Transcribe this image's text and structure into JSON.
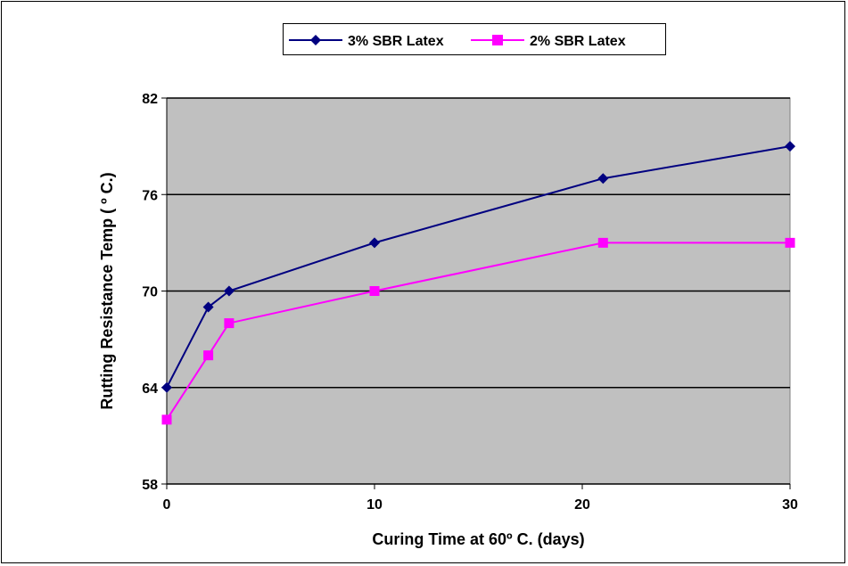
{
  "chart_data": {
    "type": "line",
    "title": "",
    "xlabel": "Curing Time at 60º C. (days)",
    "ylabel": "Rutting Resistance Temp ( º C.)",
    "x_ticks": [
      0,
      10,
      20,
      30
    ],
    "y_ticks": [
      58,
      64,
      70,
      76,
      82
    ],
    "xlim": [
      0,
      30
    ],
    "ylim": [
      58,
      82
    ],
    "grid": "horizontal",
    "plot_background": "#c0c0c0",
    "legend_position": "top",
    "series": [
      {
        "name": "3% SBR Latex",
        "color": "#000080",
        "marker": "diamond",
        "x": [
          0,
          2,
          3,
          10,
          21,
          30
        ],
        "y": [
          64,
          69,
          70,
          73,
          77,
          79
        ]
      },
      {
        "name": "2% SBR Latex",
        "color": "#ff00ff",
        "marker": "square",
        "x": [
          0,
          2,
          3,
          10,
          21,
          30
        ],
        "y": [
          62,
          66,
          68,
          70,
          73,
          73
        ]
      }
    ]
  }
}
